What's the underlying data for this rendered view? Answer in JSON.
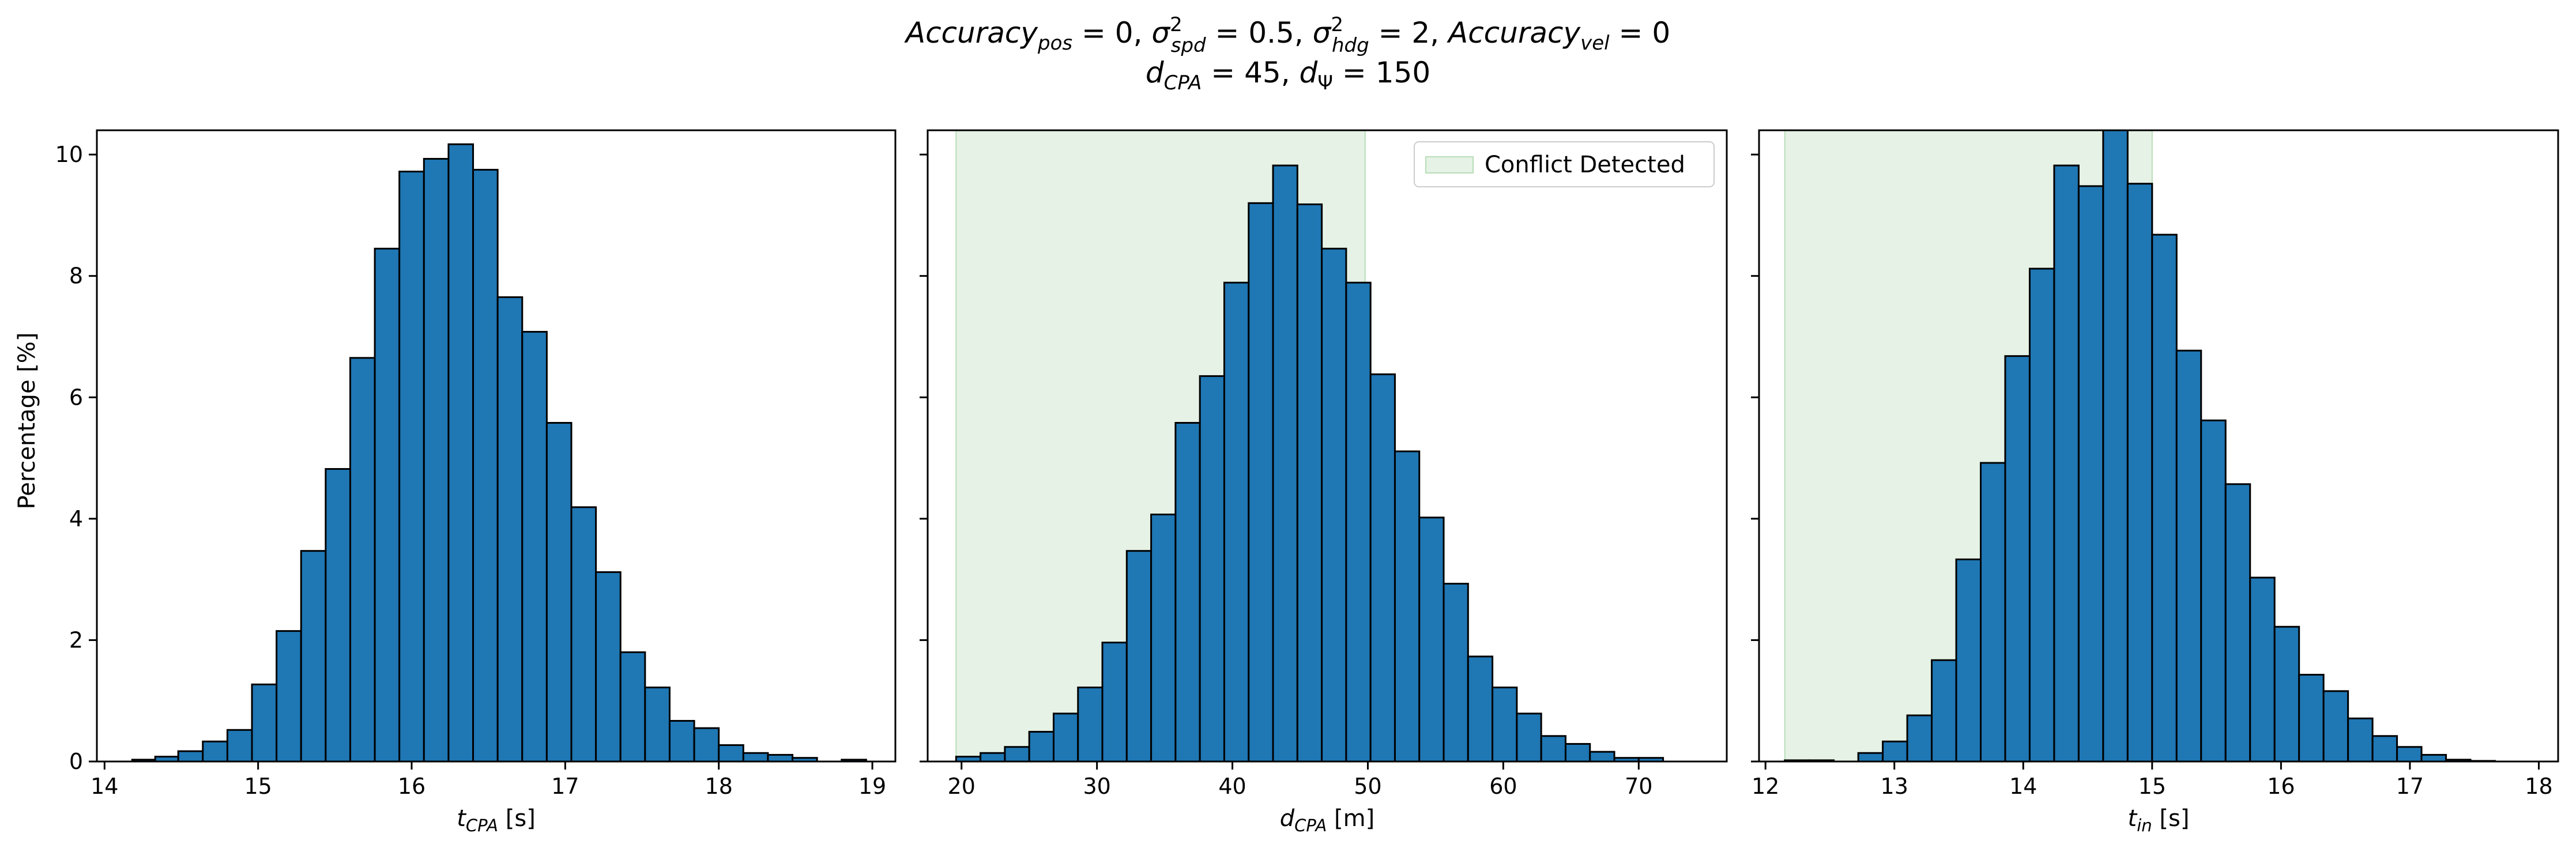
{
  "figure": {
    "title_line1": "Accuracy_pos = 0, σ²_spd = 0.5, σ²_hdg = 2, Accuracy_vel = 0",
    "title_line2": "d_CPA = 45, d_Ψ = 150",
    "ylabel": "Percentage [%]"
  },
  "colors": {
    "bar_fill": "#1f77b4",
    "bar_edge": "#000000",
    "conflict_fill": "#e5f2e5",
    "conflict_edge": "#b8deb8"
  },
  "chart_data": [
    {
      "type": "bar",
      "xlabel": "t_CPA [s]",
      "xlim": [
        13.95,
        19.15
      ],
      "ylim": [
        0,
        10.4
      ],
      "xticks": [
        14,
        15,
        16,
        17,
        18,
        19
      ],
      "yticks": [
        0,
        2,
        4,
        6,
        8,
        10
      ],
      "bin_edges": [
        14.18,
        14.33,
        14.48,
        14.64,
        14.8,
        14.96,
        15.12,
        15.28,
        15.44,
        15.6,
        15.76,
        15.92,
        16.08,
        16.24,
        16.4,
        16.56,
        16.72,
        16.88,
        17.04,
        17.2,
        17.36,
        17.52,
        17.68,
        17.84,
        18.0,
        18.16,
        18.32,
        18.48,
        18.64,
        18.8,
        18.96
      ],
      "values": [
        0.03,
        0.08,
        0.17,
        0.33,
        0.52,
        1.27,
        2.15,
        3.47,
        4.82,
        6.65,
        8.45,
        9.72,
        9.93,
        10.17,
        9.75,
        7.65,
        7.08,
        5.58,
        4.19,
        3.12,
        1.8,
        1.22,
        0.67,
        0.55,
        0.27,
        0.14,
        0.11,
        0.06,
        0.0,
        0.03
      ]
    },
    {
      "type": "bar",
      "xlabel": "d_CPA [m]",
      "xlim": [
        17.5,
        76.5
      ],
      "ylim": [
        0,
        10.4
      ],
      "xticks": [
        20,
        30,
        40,
        50,
        60,
        70
      ],
      "yticks": [
        0,
        2,
        4,
        6,
        8,
        10
      ],
      "legend": {
        "label": "Conflict Detected",
        "placement": "upper right"
      },
      "conflict_span": [
        19.6,
        49.8
      ],
      "bin_edges": [
        19.6,
        21.4,
        23.2,
        25.0,
        26.8,
        28.6,
        30.4,
        32.2,
        34.0,
        35.8,
        37.6,
        39.4,
        41.2,
        43.0,
        44.8,
        46.6,
        48.4,
        50.2,
        52.0,
        53.8,
        55.6,
        57.4,
        59.2,
        61.0,
        62.8,
        64.6,
        66.4,
        68.2,
        70.0,
        71.8,
        73.6
      ],
      "values": [
        0.08,
        0.14,
        0.24,
        0.49,
        0.79,
        1.22,
        1.96,
        3.47,
        4.07,
        5.58,
        6.35,
        7.89,
        9.2,
        9.82,
        9.18,
        8.45,
        7.89,
        6.38,
        5.11,
        4.02,
        2.93,
        1.73,
        1.22,
        0.79,
        0.42,
        0.29,
        0.16,
        0.06,
        0.06,
        0.0
      ]
    },
    {
      "type": "bar",
      "xlabel": "t_in [s]",
      "xlim": [
        11.95,
        18.15
      ],
      "ylim": [
        0,
        10.4
      ],
      "xticks": [
        12,
        13,
        14,
        15,
        16,
        17,
        18
      ],
      "yticks": [
        0,
        2,
        4,
        6,
        8,
        10
      ],
      "conflict_span": [
        12.15,
        15.0
      ],
      "bin_edges": [
        12.15,
        12.34,
        12.53,
        12.72,
        12.91,
        13.1,
        13.29,
        13.48,
        13.67,
        13.86,
        14.05,
        14.24,
        14.43,
        14.62,
        14.81,
        15.0,
        15.19,
        15.38,
        15.57,
        15.76,
        15.95,
        16.14,
        16.33,
        16.52,
        16.71,
        16.9,
        17.09,
        17.28,
        17.47,
        17.66,
        17.85
      ],
      "values": [
        0.02,
        0.02,
        0.0,
        0.14,
        0.33,
        0.76,
        1.67,
        3.33,
        4.92,
        6.68,
        8.12,
        9.82,
        9.48,
        10.42,
        9.52,
        8.68,
        6.77,
        5.62,
        4.57,
        3.03,
        2.22,
        1.43,
        1.16,
        0.71,
        0.42,
        0.24,
        0.11,
        0.03,
        0.01,
        0.0
      ]
    }
  ]
}
